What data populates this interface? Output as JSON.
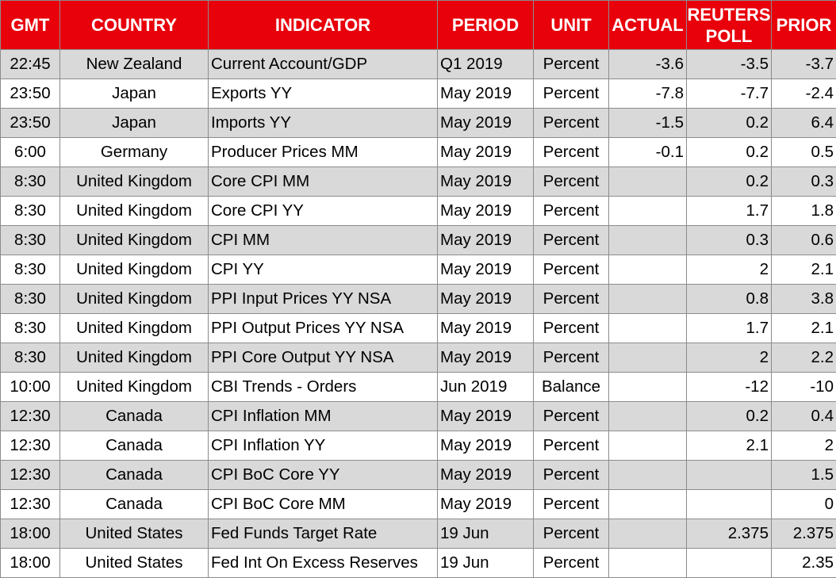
{
  "headers": {
    "gmt": "GMT",
    "country": "COUNTRY",
    "indicator": "INDICATOR",
    "period": "PERIOD",
    "unit": "UNIT",
    "actual": "ACTUAL",
    "poll_line1": "REUTERS",
    "poll_line2": "POLL",
    "prior": "PRIOR"
  },
  "colors": {
    "header_bg": "#e8000b",
    "header_text": "#ffffff",
    "row_shaded": "#d9d9d9",
    "row_plain": "#ffffff"
  },
  "rows": [
    {
      "gmt": "22:45",
      "country": "New Zealand",
      "indicator": "Current Account/GDP",
      "period": "Q1 2019",
      "unit": "Percent",
      "actual": "-3.6",
      "poll": "-3.5",
      "prior": "-3.7"
    },
    {
      "gmt": "23:50",
      "country": "Japan",
      "indicator": "Exports YY",
      "period": "May 2019",
      "unit": "Percent",
      "actual": "-7.8",
      "poll": "-7.7",
      "prior": "-2.4"
    },
    {
      "gmt": "23:50",
      "country": "Japan",
      "indicator": "Imports YY",
      "period": "May 2019",
      "unit": "Percent",
      "actual": "-1.5",
      "poll": "0.2",
      "prior": "6.4"
    },
    {
      "gmt": "6:00",
      "country": "Germany",
      "indicator": "Producer Prices MM",
      "period": "May 2019",
      "unit": "Percent",
      "actual": "-0.1",
      "poll": "0.2",
      "prior": "0.5"
    },
    {
      "gmt": "8:30",
      "country": "United Kingdom",
      "indicator": "Core CPI MM",
      "period": "May 2019",
      "unit": "Percent",
      "actual": "",
      "poll": "0.2",
      "prior": "0.3"
    },
    {
      "gmt": "8:30",
      "country": "United Kingdom",
      "indicator": "Core CPI YY",
      "period": "May 2019",
      "unit": "Percent",
      "actual": "",
      "poll": "1.7",
      "prior": "1.8"
    },
    {
      "gmt": "8:30",
      "country": "United Kingdom",
      "indicator": "CPI MM",
      "period": "May 2019",
      "unit": "Percent",
      "actual": "",
      "poll": "0.3",
      "prior": "0.6"
    },
    {
      "gmt": "8:30",
      "country": "United Kingdom",
      "indicator": "CPI YY",
      "period": "May 2019",
      "unit": "Percent",
      "actual": "",
      "poll": "2",
      "prior": "2.1"
    },
    {
      "gmt": "8:30",
      "country": "United Kingdom",
      "indicator": "PPI Input Prices YY NSA",
      "period": "May 2019",
      "unit": "Percent",
      "actual": "",
      "poll": "0.8",
      "prior": "3.8"
    },
    {
      "gmt": "8:30",
      "country": "United Kingdom",
      "indicator": "PPI Output Prices YY NSA",
      "period": "May 2019",
      "unit": "Percent",
      "actual": "",
      "poll": "1.7",
      "prior": "2.1"
    },
    {
      "gmt": "8:30",
      "country": "United Kingdom",
      "indicator": "PPI Core Output YY NSA",
      "period": "May 2019",
      "unit": "Percent",
      "actual": "",
      "poll": "2",
      "prior": "2.2"
    },
    {
      "gmt": "10:00",
      "country": "United Kingdom",
      "indicator": "CBI Trends - Orders",
      "period": "Jun 2019",
      "unit": "Balance",
      "actual": "",
      "poll": "-12",
      "prior": "-10"
    },
    {
      "gmt": "12:30",
      "country": "Canada",
      "indicator": "CPI Inflation MM",
      "period": "May 2019",
      "unit": "Percent",
      "actual": "",
      "poll": "0.2",
      "prior": "0.4"
    },
    {
      "gmt": "12:30",
      "country": "Canada",
      "indicator": "CPI Inflation YY",
      "period": "May 2019",
      "unit": "Percent",
      "actual": "",
      "poll": "2.1",
      "prior": "2"
    },
    {
      "gmt": "12:30",
      "country": "Canada",
      "indicator": "CPI BoC Core YY",
      "period": "May 2019",
      "unit": "Percent",
      "actual": "",
      "poll": "",
      "prior": "1.5"
    },
    {
      "gmt": "12:30",
      "country": "Canada",
      "indicator": "CPI BoC Core MM",
      "period": "May 2019",
      "unit": "Percent",
      "actual": "",
      "poll": "",
      "prior": "0"
    },
    {
      "gmt": "18:00",
      "country": "United States",
      "indicator": "Fed Funds Target Rate",
      "period": "19 Jun",
      "unit": "Percent",
      "actual": "",
      "poll": "2.375",
      "prior": "2.375"
    },
    {
      "gmt": "18:00",
      "country": "United States",
      "indicator": "Fed Int On Excess Reserves",
      "period": "19 Jun",
      "unit": "Percent",
      "actual": "",
      "poll": "",
      "prior": "2.35"
    }
  ]
}
